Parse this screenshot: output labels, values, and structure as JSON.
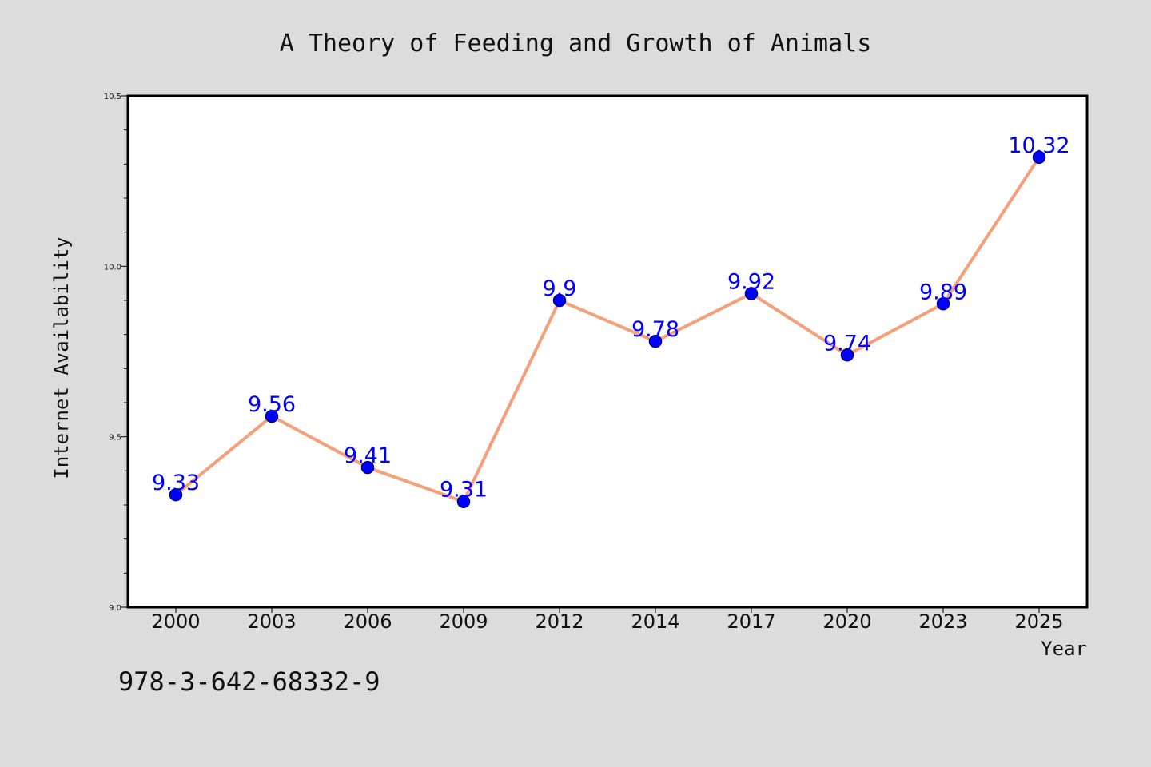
{
  "chart_data": {
    "type": "line",
    "title": "A Theory of Feeding and Growth of Animals",
    "xlabel": "Year",
    "ylabel": "Internet Availability",
    "categories": [
      "2000",
      "2003",
      "2006",
      "2009",
      "2012",
      "2014",
      "2017",
      "2020",
      "2023",
      "2025"
    ],
    "series": [
      {
        "values": [
          9.33,
          9.56,
          9.41,
          9.31,
          9.9,
          9.78,
          9.92,
          9.74,
          9.89,
          10.32
        ],
        "data_labels": [
          "9.33",
          "9.56",
          "9.41",
          "9.31",
          "9.9",
          "9.78",
          "9.92",
          "9.74",
          "9.89",
          "10.32"
        ]
      }
    ],
    "ylim": [
      9.0,
      10.5
    ],
    "yticks": [
      "9.0",
      "9.5",
      "10.0",
      "10.5"
    ],
    "grid": false,
    "legend": "none",
    "colors": {
      "line": "#f4a07a",
      "marker": "#0000ff",
      "marker_edge": "#000080",
      "labels": "#0000ff",
      "background": "#dcdcdc",
      "plot_background": "#ffffff"
    }
  },
  "footer": {
    "isbn": "978-3-642-68332-9"
  }
}
